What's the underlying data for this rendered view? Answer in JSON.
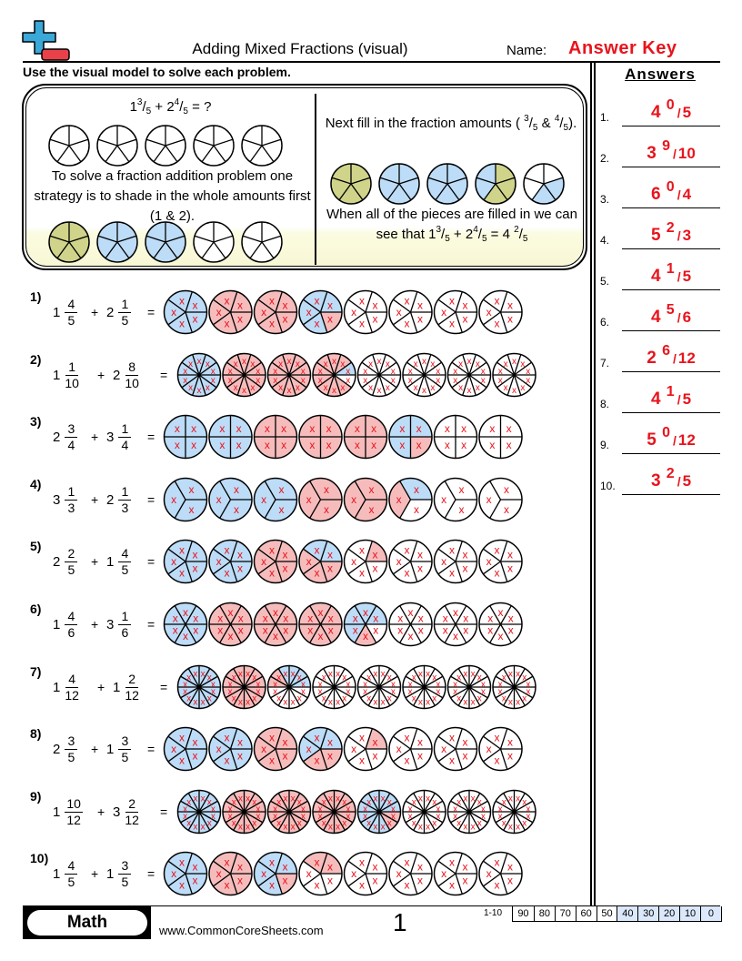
{
  "header": {
    "title": "Adding Mixed Fractions (visual)",
    "name_label": "Name:",
    "name_value": "Answer Key",
    "logo": "plus-minus-logo"
  },
  "instructions": "Use the visual model to solve each problem.",
  "example": {
    "problem": {
      "w1": "1",
      "n1": "3",
      "d1": "5",
      "w2": "2",
      "n2": "4",
      "d2": "5",
      "tail": "= ?"
    },
    "step1": "To solve a fraction addition problem one strategy is to shade in the whole amounts first (1 & 2).",
    "step2_pre": "Next fill in the fraction amounts (",
    "step2_a_n": "3",
    "step2_a_d": "5",
    "step2_amp": "&",
    "step2_b_n": "4",
    "step2_b_d": "5",
    "step2_post": ").",
    "step3": "When all of the pieces are filled in we can",
    "step3b_pre": "see that",
    "result": {
      "w": "4",
      "n": "2",
      "d": "5"
    },
    "colors": {
      "first_whole": "#cfd48a",
      "second": "#bcdcf7"
    }
  },
  "colors": {
    "first_addend": "#bcdcf7",
    "second_addend": "#f6bcbc",
    "mark": "#e8141c",
    "answer": "#e8141c"
  },
  "answers_title": "Answers",
  "problems": [
    {
      "label": "1)",
      "w1": "1",
      "n1": "4",
      "w2": "2",
      "n2": "1",
      "d": "5",
      "answer": {
        "w": "4",
        "n": "0",
        "d": "5"
      }
    },
    {
      "label": "2)",
      "w1": "1",
      "n1": "1",
      "w2": "2",
      "n2": "8",
      "d": "10",
      "answer": {
        "w": "3",
        "n": "9",
        "d": "10"
      }
    },
    {
      "label": "3)",
      "w1": "2",
      "n1": "3",
      "w2": "3",
      "n2": "1",
      "d": "4",
      "answer": {
        "w": "6",
        "n": "0",
        "d": "4"
      }
    },
    {
      "label": "4)",
      "w1": "3",
      "n1": "1",
      "w2": "2",
      "n2": "1",
      "d": "3",
      "answer": {
        "w": "5",
        "n": "2",
        "d": "3"
      }
    },
    {
      "label": "5)",
      "w1": "2",
      "n1": "2",
      "w2": "1",
      "n2": "4",
      "d": "5",
      "answer": {
        "w": "4",
        "n": "1",
        "d": "5"
      }
    },
    {
      "label": "6)",
      "w1": "1",
      "n1": "4",
      "w2": "3",
      "n2": "1",
      "d": "6",
      "answer": {
        "w": "4",
        "n": "5",
        "d": "6"
      }
    },
    {
      "label": "7)",
      "w1": "1",
      "n1": "4",
      "w2": "1",
      "n2": "2",
      "d": "12",
      "answer": {
        "w": "2",
        "n": "6",
        "d": "12"
      }
    },
    {
      "label": "8)",
      "w1": "2",
      "n1": "3",
      "w2": "1",
      "n2": "3",
      "d": "5",
      "answer": {
        "w": "4",
        "n": "1",
        "d": "5"
      }
    },
    {
      "label": "9)",
      "w1": "1",
      "n1": "10",
      "w2": "3",
      "n2": "2",
      "d": "12",
      "answer": {
        "w": "5",
        "n": "0",
        "d": "12"
      }
    },
    {
      "label": "10)",
      "w1": "1",
      "n1": "4",
      "w2": "1",
      "n2": "3",
      "d": "5",
      "answer": {
        "w": "3",
        "n": "2",
        "d": "5"
      }
    }
  ],
  "operators": {
    "plus": "+",
    "equals": "=",
    "mark": "x",
    "slash": "/"
  },
  "footer": {
    "subject": "Math",
    "site": "www.CommonCoreSheets.com",
    "page": "1",
    "score_label": "1-10",
    "scores": [
      "90",
      "80",
      "70",
      "60",
      "50",
      "40",
      "30",
      "20",
      "10",
      "0"
    ]
  }
}
